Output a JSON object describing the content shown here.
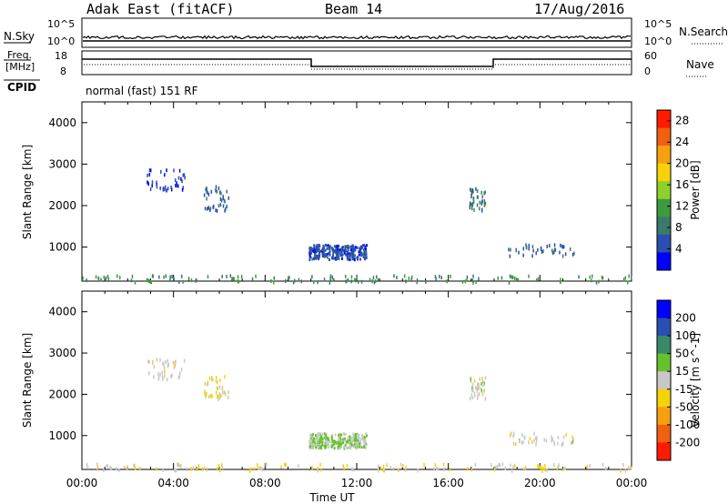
{
  "header": {
    "station": "Adak East (fitACF)",
    "beam": "Beam 14",
    "date": "17/Aug/2016"
  },
  "top_panels": {
    "nsky_label": "N.Sky",
    "nsky_ticks": [
      "10^5",
      "10^0"
    ],
    "nsearch_label": "N.Search",
    "nsearch_ticks": [
      "10^5",
      "10^0"
    ],
    "freq_label": "Freq.",
    "freq_unit": "[MHz]",
    "freq_ticks": [
      "18",
      "8"
    ],
    "nave_label": "Nave",
    "nave_ticks": [
      "60",
      "0"
    ],
    "cpid_label": "CPID",
    "cpid_value": "normal (fast) 151 RF"
  },
  "colors": {
    "power_scale": [
      "#0000ff",
      "#2a4fb0",
      "#3a7a6a",
      "#3f9a3f",
      "#8ed02c",
      "#f5d20a",
      "#f5a010",
      "#ef6010",
      "#ff1a00"
    ],
    "velocity_scale": [
      "#0000ff",
      "#2a4fb0",
      "#3a8a6a",
      "#66c22c",
      "#c8c8c8",
      "#f5d20a",
      "#f5a010",
      "#ef6010",
      "#ff1a00"
    ]
  },
  "chart_data": [
    {
      "type": "heatmap",
      "title": "",
      "xlabel": "",
      "ylabel": "Slant Range [km]",
      "x_ticks": [
        "00:00",
        "04:00",
        "08:00",
        "12:00",
        "16:00",
        "20:00",
        "00:00"
      ],
      "xlim_hours": [
        0,
        24
      ],
      "ylim_km": [
        180,
        4500
      ],
      "y_ticks": [
        1000,
        2000,
        3000,
        4000
      ],
      "colorbar": {
        "label": "Power [dB]",
        "ticks": [
          "4",
          "8",
          "12",
          "16",
          "20",
          "24",
          "28"
        ],
        "range": [
          0,
          30
        ]
      },
      "echo_regions": [
        {
          "t_start": 9.9,
          "t_end": 12.4,
          "r_min": 720,
          "r_max": 1080,
          "value": 5
        },
        {
          "t_start": 2.8,
          "t_end": 4.5,
          "r_min": 2400,
          "r_max": 2900,
          "value": 4
        },
        {
          "t_start": 5.3,
          "t_end": 6.4,
          "r_min": 1900,
          "r_max": 2500,
          "value": 6
        },
        {
          "t_start": 16.9,
          "t_end": 17.6,
          "r_min": 1900,
          "r_max": 2450,
          "value": 8
        },
        {
          "t_start": 18.6,
          "t_end": 21.5,
          "r_min": 820,
          "r_max": 1100,
          "value": 6
        },
        {
          "t_start": 0.0,
          "t_end": 24.0,
          "r_min": 180,
          "r_max": 350,
          "value": 10
        }
      ]
    },
    {
      "type": "heatmap",
      "title": "",
      "xlabel": "Time UT",
      "ylabel": "Slant Range [km]",
      "x_ticks": [
        "00:00",
        "04:00",
        "08:00",
        "12:00",
        "16:00",
        "20:00",
        "00:00"
      ],
      "xlim_hours": [
        0,
        24
      ],
      "ylim_km": [
        180,
        4500
      ],
      "y_ticks": [
        1000,
        2000,
        3000,
        4000
      ],
      "colorbar": {
        "label": "Velocity [m s^-1]",
        "ticks": [
          "200",
          "100",
          "50",
          "15",
          "-15",
          "-50",
          "-100",
          "-200"
        ],
        "range": [
          -250,
          250
        ]
      },
      "echo_regions": [
        {
          "t_start": 9.9,
          "t_end": 12.4,
          "r_min": 720,
          "r_max": 1080,
          "value": 30
        },
        {
          "t_start": 2.8,
          "t_end": 4.5,
          "r_min": 2400,
          "r_max": 2900,
          "value": 0
        },
        {
          "t_start": 5.3,
          "t_end": 6.4,
          "r_min": 1900,
          "r_max": 2500,
          "value": -40
        },
        {
          "t_start": 16.9,
          "t_end": 17.6,
          "r_min": 1900,
          "r_max": 2450,
          "value": 0
        },
        {
          "t_start": 18.6,
          "t_end": 21.5,
          "r_min": 820,
          "r_max": 1100,
          "value": 0
        },
        {
          "t_start": 0.0,
          "t_end": 24.0,
          "r_min": 180,
          "r_max": 350,
          "value": -30
        }
      ]
    }
  ]
}
